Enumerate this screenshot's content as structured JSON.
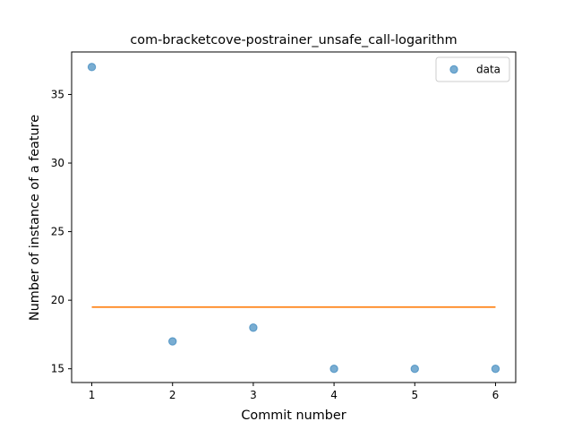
{
  "chart_data": {
    "type": "scatter",
    "title": "com-bracketcove-postrainer_unsafe_call-logarithm",
    "xlabel": "Commit number",
    "ylabel": "Number of instance of a feature",
    "xlim": [
      0.75,
      6.25
    ],
    "ylim": [
      14.0,
      38.1
    ],
    "xticks": [
      1,
      2,
      3,
      4,
      5,
      6
    ],
    "yticks": [
      15,
      20,
      25,
      30,
      35
    ],
    "grid": false,
    "legend": {
      "placement": "top-right",
      "entries": [
        "data"
      ]
    },
    "series": [
      {
        "name": "data",
        "kind": "scatter",
        "color": "#1f77b4",
        "x": [
          1,
          2,
          3,
          4,
          5,
          6
        ],
        "y": [
          37,
          17,
          18,
          15,
          15,
          15
        ]
      },
      {
        "kind": "line",
        "color": "#ff7f0e",
        "x": [
          1,
          6
        ],
        "y": [
          19.5,
          19.5
        ]
      }
    ]
  }
}
